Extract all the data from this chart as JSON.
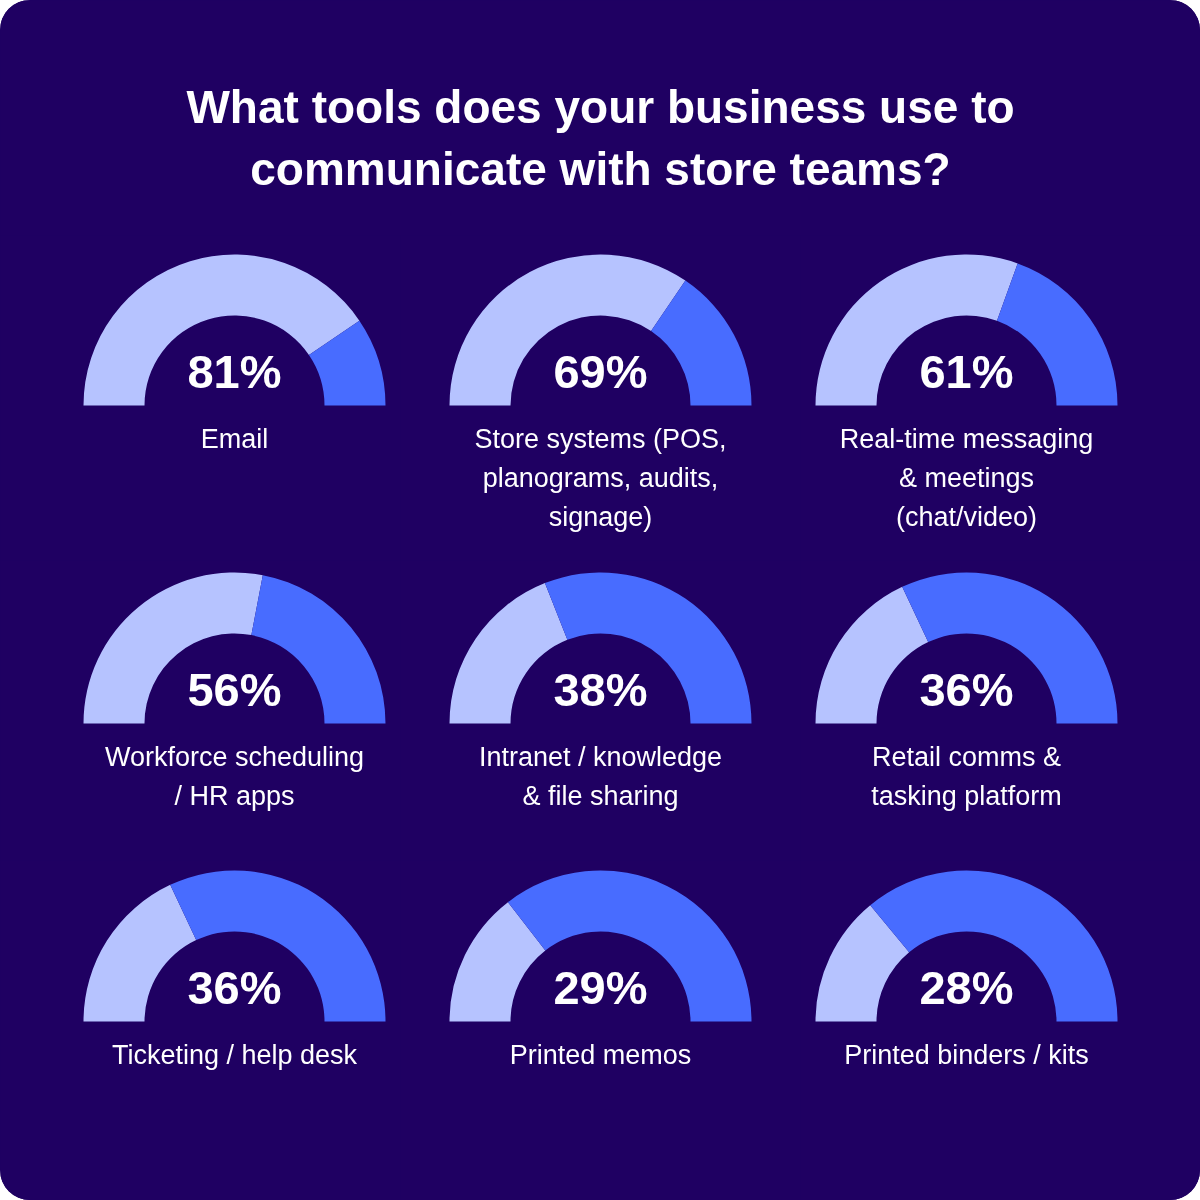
{
  "chart_data": [
    {
      "type": "other",
      "title": "What tools does your business use to communicate with store teams?"
    },
    {
      "type": "donut",
      "title": "Email",
      "categories": [
        null,
        null
      ],
      "values": [
        81,
        19
      ],
      "colors": [
        "#b6c3ff",
        "#486cff"
      ],
      "annotations": [
        "81%"
      ]
    },
    {
      "type": "donut",
      "title": "Store systems (POS, planograms, audits, signage)",
      "categories": [
        null,
        null
      ],
      "values": [
        69,
        31
      ],
      "colors": [
        "#b6c3ff",
        "#486cff"
      ],
      "annotations": [
        "69%"
      ]
    },
    {
      "type": "donut",
      "title": "Real-time messaging & meetings (chat/video)",
      "categories": [
        null,
        null
      ],
      "values": [
        61,
        39
      ],
      "colors": [
        "#b6c3ff",
        "#486cff"
      ],
      "annotations": [
        "61%"
      ]
    },
    {
      "type": "donut",
      "title": "Workforce scheduling / HR apps",
      "categories": [
        null,
        null
      ],
      "values": [
        56,
        44
      ],
      "colors": [
        "#b6c3ff",
        "#486cff"
      ],
      "annotations": [
        "56%"
      ]
    },
    {
      "type": "donut",
      "title": "Intranet / knowledge & file sharing",
      "categories": [
        null,
        null
      ],
      "values": [
        38,
        62
      ],
      "colors": [
        "#b6c3ff",
        "#486cff"
      ],
      "annotations": [
        "38%"
      ]
    },
    {
      "type": "donut",
      "title": "Retail comms & tasking platform",
      "categories": [
        null,
        null
      ],
      "values": [
        36,
        64
      ],
      "colors": [
        "#b6c3ff",
        "#486cff"
      ],
      "annotations": [
        "36%"
      ]
    },
    {
      "type": "donut",
      "title": "Ticketing / help desk",
      "categories": [
        null,
        null
      ],
      "values": [
        36,
        64
      ],
      "colors": [
        "#b6c3ff",
        "#486cff"
      ],
      "annotations": [
        "36%"
      ]
    },
    {
      "type": "donut",
      "title": "Printed memos",
      "categories": [
        null,
        null
      ],
      "values": [
        29,
        71
      ],
      "colors": [
        "#b6c3ff",
        "#486cff"
      ],
      "annotations": [
        "29%"
      ]
    },
    {
      "type": "donut",
      "title": "Printed binders / kits",
      "categories": [
        null,
        null
      ],
      "values": [
        28,
        72
      ],
      "colors": [
        "#b6c3ff",
        "#486cff"
      ],
      "annotations": [
        "28%"
      ]
    }
  ]
}
